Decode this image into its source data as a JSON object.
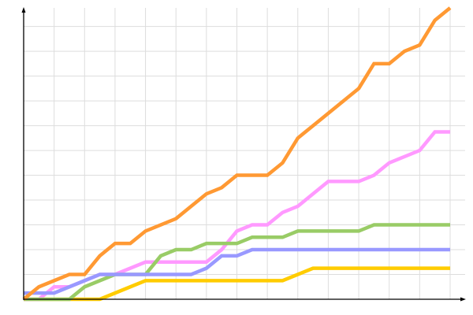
{
  "chart_data": {
    "type": "line",
    "title": "",
    "xlabel": "",
    "ylabel": "",
    "x": [
      0,
      1,
      2,
      3,
      4,
      5,
      6,
      7,
      8,
      9,
      10,
      11,
      12,
      13,
      14,
      15,
      16,
      17,
      18,
      19,
      20,
      21,
      22,
      23,
      24,
      25,
      26,
      27,
      28
    ],
    "xlim": [
      0,
      28
    ],
    "ylim": [
      0,
      47
    ],
    "grid": true,
    "legend": "none",
    "series": [
      {
        "color": "#ffcc00",
        "values": [
          0,
          0,
          0,
          0,
          0,
          0,
          1,
          2,
          3,
          3,
          3,
          3,
          3,
          3,
          3,
          3,
          3,
          3,
          4,
          5,
          5,
          5,
          5,
          5,
          5,
          5,
          5,
          5,
          5
        ]
      },
      {
        "color": "#ff99ff",
        "values": [
          0,
          0,
          2,
          2,
          3,
          4,
          4,
          5,
          6,
          6,
          6,
          6,
          6,
          8,
          11,
          12,
          12,
          14,
          15,
          17,
          19,
          19,
          19,
          20,
          22,
          23,
          24,
          27,
          27
        ]
      },
      {
        "color": "#99cc66",
        "values": [
          0,
          0,
          0,
          0,
          2,
          3,
          4,
          4,
          4,
          7,
          8,
          8,
          9,
          9,
          9,
          10,
          10,
          10,
          11,
          11,
          11,
          11,
          11,
          12,
          12,
          12,
          12,
          12,
          12
        ]
      },
      {
        "color": "#9999ff",
        "values": [
          1,
          1,
          1,
          2,
          3,
          4,
          4,
          4,
          4,
          4,
          4,
          4,
          5,
          7,
          7,
          8,
          8,
          8,
          8,
          8,
          8,
          8,
          8,
          8,
          8,
          8,
          8,
          8,
          8
        ]
      },
      {
        "color": "#ff9933",
        "values": [
          0,
          2,
          3,
          4,
          4,
          7,
          9,
          9,
          11,
          12,
          13,
          15,
          17,
          18,
          20,
          20,
          20,
          22,
          26,
          28,
          30,
          32,
          34,
          38,
          38,
          40,
          41,
          45,
          47
        ]
      }
    ]
  }
}
